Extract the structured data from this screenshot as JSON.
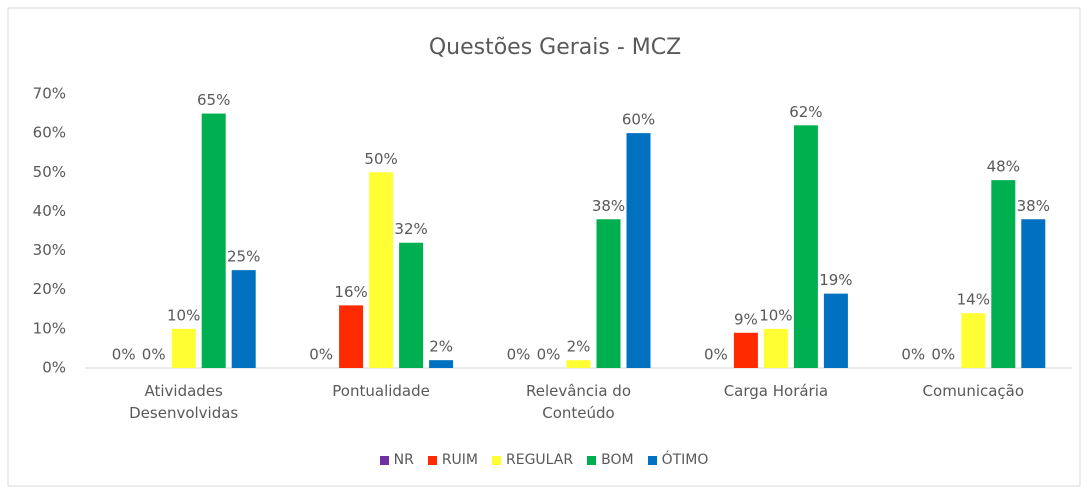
{
  "chart_data": {
    "type": "bar",
    "title": "Questões Gerais - MCZ",
    "categories": [
      "Atividades Desenvolvidas",
      "Pontualidade",
      "Relevância do Conteúdo",
      "Carga Horária",
      "Comunicação"
    ],
    "series": [
      {
        "name": "NR",
        "color": "#7030a0",
        "values": [
          0,
          0,
          0,
          0,
          0
        ],
        "value_labels": [
          "0%",
          "0%",
          "0%",
          "0%",
          "0%"
        ]
      },
      {
        "name": "RUIM",
        "color": "#ff2a00",
        "values": [
          0,
          16,
          0,
          9,
          0
        ],
        "value_labels": [
          "0%",
          "16%",
          "0%",
          "9%",
          "0%"
        ]
      },
      {
        "name": "REGULAR",
        "color": "#ffff33",
        "values": [
          10,
          50,
          2,
          10,
          14
        ],
        "value_labels": [
          "10%",
          "50%",
          "2%",
          "10%",
          "14%"
        ]
      },
      {
        "name": "BOM",
        "color": "#00b050",
        "values": [
          65,
          32,
          38,
          62,
          48
        ],
        "value_labels": [
          "65%",
          "32%",
          "38%",
          "62%",
          "48%"
        ]
      },
      {
        "name": "ÓTIMO",
        "color": "#0070c0",
        "values": [
          25,
          2,
          60,
          19,
          38
        ],
        "value_labels": [
          "25%",
          "2%",
          "60%",
          "19%",
          "38%"
        ]
      }
    ],
    "ylim": [
      0,
      70
    ],
    "yticks": [
      {
        "value": 0,
        "label": "0%"
      },
      {
        "value": 10,
        "label": "10%"
      },
      {
        "value": 20,
        "label": "20%"
      },
      {
        "value": 30,
        "label": "30%"
      },
      {
        "value": 40,
        "label": "40%"
      },
      {
        "value": 50,
        "label": "50%"
      },
      {
        "value": 60,
        "label": "60%"
      },
      {
        "value": 70,
        "label": "70%"
      }
    ],
    "grid": false,
    "legend": "bottom"
  }
}
